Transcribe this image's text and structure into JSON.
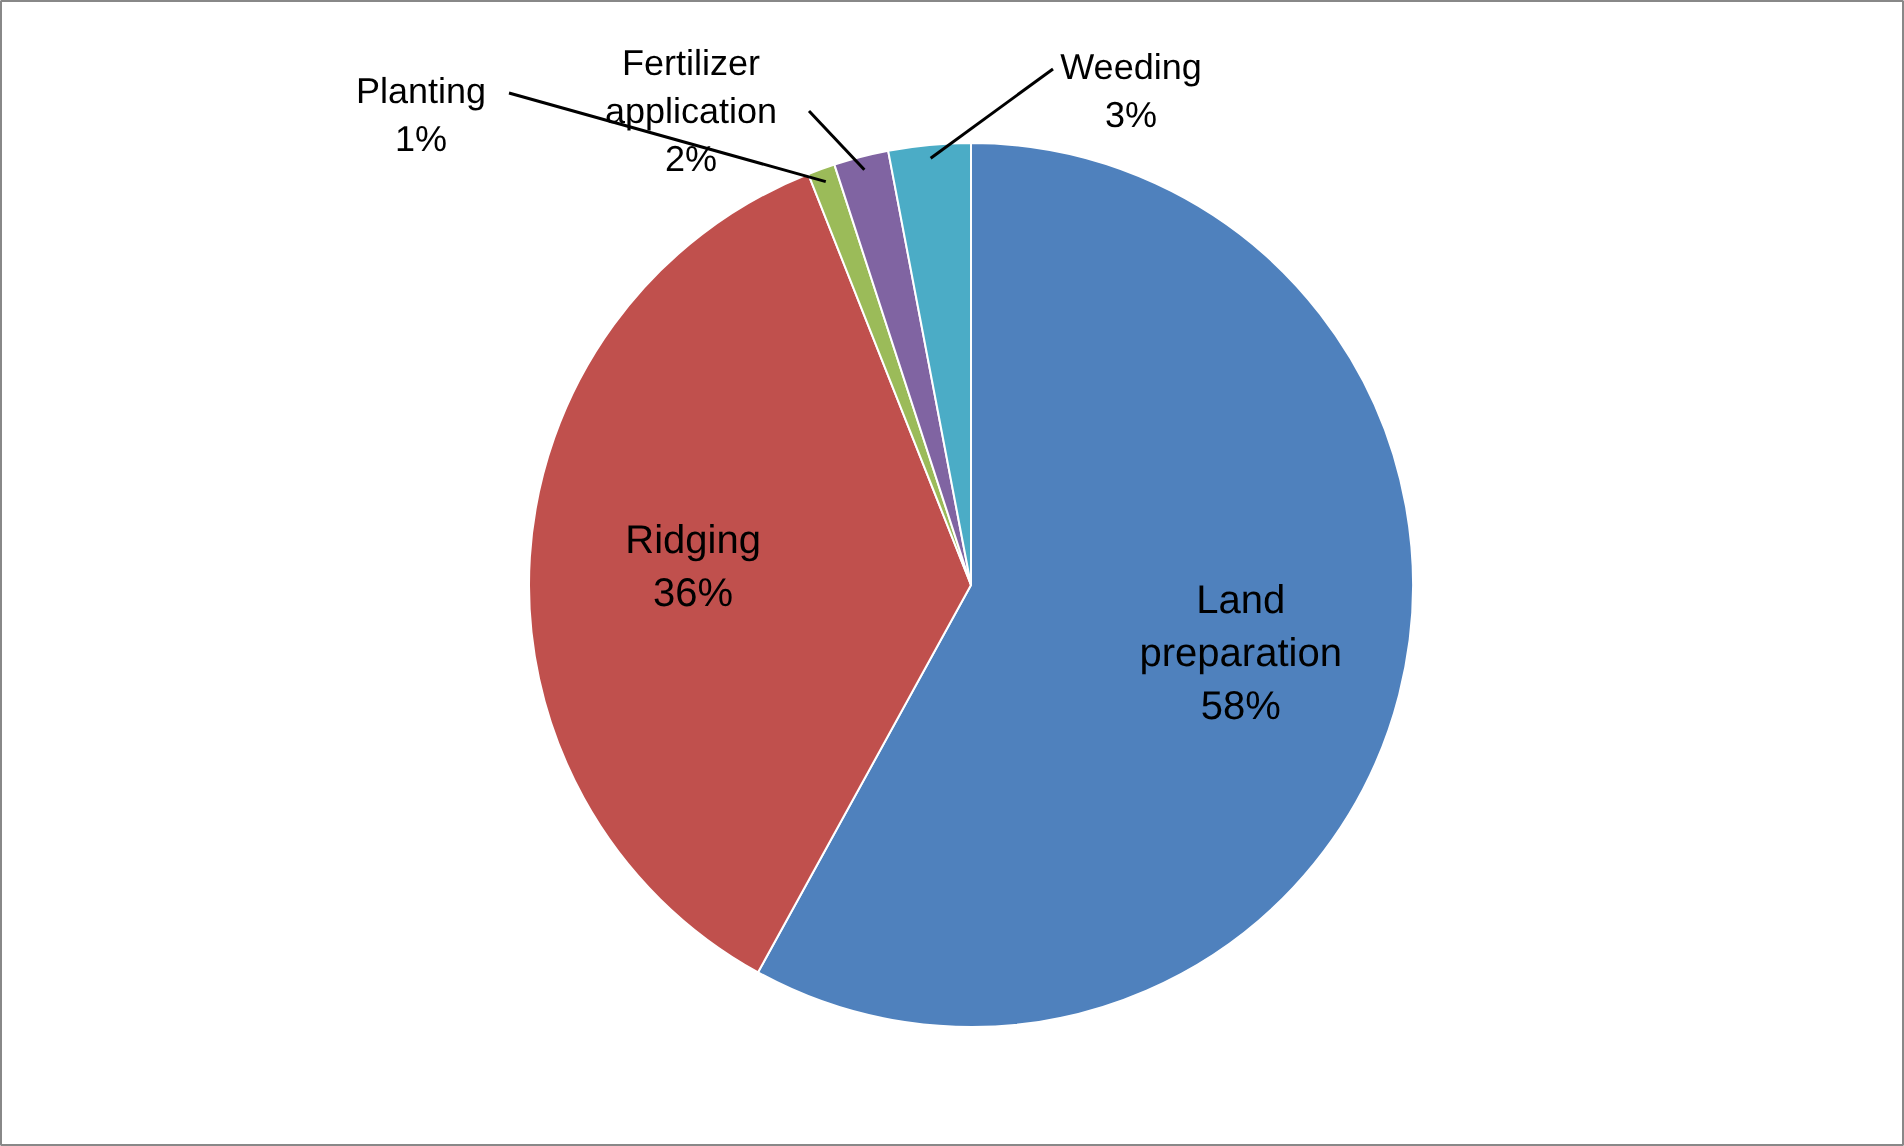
{
  "chart_data": {
    "type": "pie",
    "categories": [
      "Land preparation",
      "Ridging",
      "Planting",
      "Fertilizer application",
      "Weeding"
    ],
    "values": [
      58,
      36,
      1,
      2,
      3
    ],
    "colors": [
      "#4f81bd",
      "#c0504d",
      "#9bbb59",
      "#8064a2",
      "#4bacc6"
    ],
    "value_labels": [
      "58%",
      "36%",
      "1%",
      "2%",
      "3%"
    ]
  }
}
